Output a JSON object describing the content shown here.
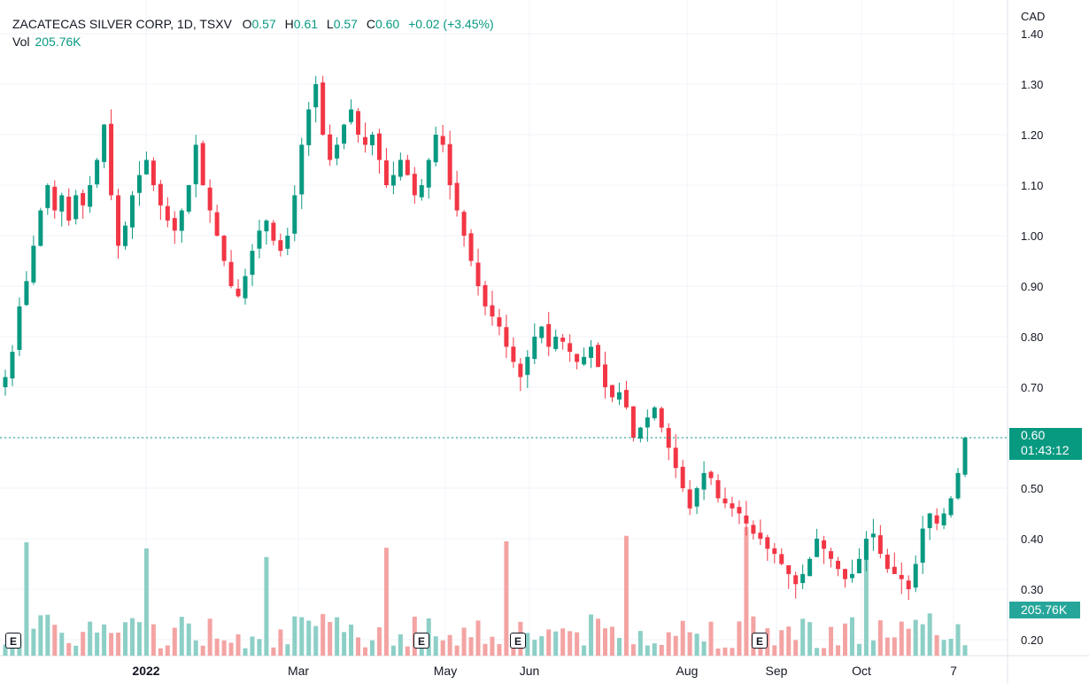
{
  "legend": {
    "symbol": "ZACATECAS SILVER CORP, 1D, TSXV",
    "open_label": "O",
    "open": "0.57",
    "high_label": "H",
    "high": "0.61",
    "low_label": "L",
    "low": "0.57",
    "close_label": "C",
    "close": "0.60",
    "change": "+0.02 (+3.45%)",
    "vol_label": "Vol",
    "vol": "205.76K"
  },
  "currency": "CAD",
  "last_price": "0.60",
  "countdown": "01:43:12",
  "volume_badge": "205.76K",
  "earnings_markers": [
    "E",
    "E",
    "E",
    "E"
  ],
  "colors": {
    "up": "#089981",
    "down": "#f23645",
    "vol_up": "#8ccfc6",
    "vol_down": "#f4a3a3",
    "grid": "#f0f3fa"
  },
  "chart_data": {
    "type": "candlestick",
    "title": "ZACATECAS SILVER CORP, 1D, TSXV",
    "ylabel": "CAD",
    "ylim": [
      0.17,
      1.41
    ],
    "y_ticks": [
      "1.40",
      "1.30",
      "1.20",
      "1.10",
      "1.00",
      "0.90",
      "0.80",
      "0.70",
      "0.60",
      "0.50",
      "0.40",
      "0.30",
      "0.20"
    ],
    "x_ticks": [
      "2022",
      "Mar",
      "May",
      "Jun",
      "Aug",
      "Sep",
      "Oct",
      "7"
    ],
    "grid": true,
    "last_price": 0.6,
    "closes": [
      0.72,
      0.77,
      0.86,
      0.91,
      0.98,
      1.05,
      1.1,
      1.05,
      1.08,
      1.03,
      1.08,
      1.06,
      1.1,
      1.15,
      1.22,
      1.08,
      0.98,
      1.02,
      1.08,
      1.12,
      1.15,
      1.1,
      1.06,
      1.03,
      1.01,
      1.05,
      1.1,
      1.18,
      1.1,
      1.05,
      1.0,
      0.95,
      0.9,
      0.88,
      0.92,
      0.97,
      1.01,
      1.03,
      0.99,
      0.97,
      1.0,
      1.08,
      1.18,
      1.25,
      1.3,
      1.2,
      1.15,
      1.18,
      1.22,
      1.25,
      1.2,
      1.18,
      1.2,
      1.15,
      1.1,
      1.12,
      1.15,
      1.12,
      1.08,
      1.1,
      1.15,
      1.2,
      1.18,
      1.1,
      1.05,
      1.0,
      0.95,
      0.9,
      0.86,
      0.84,
      0.82,
      0.78,
      0.75,
      0.72,
      0.76,
      0.8,
      0.82,
      0.78,
      0.8,
      0.79,
      0.77,
      0.75,
      0.76,
      0.78,
      0.74,
      0.7,
      0.68,
      0.69,
      0.66,
      0.6,
      0.62,
      0.64,
      0.66,
      0.62,
      0.58,
      0.54,
      0.5,
      0.46,
      0.5,
      0.53,
      0.52,
      0.48,
      0.47,
      0.46,
      0.45,
      0.43,
      0.41,
      0.4,
      0.38,
      0.37,
      0.35,
      0.33,
      0.31,
      0.33,
      0.36,
      0.4,
      0.38,
      0.36,
      0.34,
      0.32,
      0.33,
      0.36,
      0.4,
      0.41,
      0.37,
      0.34,
      0.33,
      0.32,
      0.3,
      0.35,
      0.42,
      0.45,
      0.43,
      0.45,
      0.48,
      0.53,
      0.6
    ],
    "volume_label": "Vol",
    "volume_last": "205.76K"
  }
}
